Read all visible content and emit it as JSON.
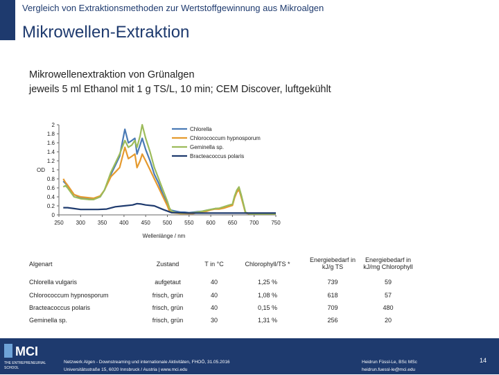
{
  "header": {
    "supertitle": "Vergleich von Extraktionsmethoden zur Wertstoffgewinnung aus Mikroalgen",
    "title": "Mikrowellen-Extraktion"
  },
  "subtitle": {
    "line1": "Mikrowellenextraktion von Grünalgen",
    "line2": "jeweils 5 ml Ethanol mit 1 g TS/L, 10 min; CEM Discover, luftgekühlt"
  },
  "chart_data": {
    "type": "line",
    "ylabel": "OD",
    "xlabel": "Wellenlänge / nm",
    "ylim": [
      0,
      2
    ],
    "xlim": [
      250,
      750
    ],
    "yticks": [
      "0",
      "0.2",
      "0.4",
      "0.6",
      "0.8",
      "1",
      "1.2",
      "1.4",
      "1.6",
      "1.8",
      "2"
    ],
    "xticks": [
      "250",
      "300",
      "350",
      "400",
      "450",
      "500",
      "550",
      "600",
      "650",
      "700",
      "750"
    ],
    "legend_position": "top-right",
    "series": [
      {
        "name": "Chlorella",
        "color": "#4a7ab5",
        "x": [
          260,
          265,
          270,
          285,
          300,
          320,
          330,
          345,
          355,
          370,
          380,
          390,
          402,
          410,
          418,
          425,
          430,
          437,
          442,
          450,
          460,
          470,
          480,
          490,
          500,
          505,
          510,
          520,
          530,
          540,
          550,
          560,
          570,
          580,
          590,
          600,
          610,
          620,
          630,
          640,
          650,
          655,
          660,
          665,
          670,
          680,
          690,
          700,
          710,
          720,
          730,
          740,
          750
        ],
        "y": [
          0.75,
          0.7,
          0.65,
          0.45,
          0.38,
          0.35,
          0.35,
          0.4,
          0.55,
          0.9,
          1.1,
          1.3,
          1.9,
          1.6,
          1.65,
          1.7,
          1.35,
          1.55,
          1.7,
          1.45,
          1.2,
          0.9,
          0.7,
          0.45,
          0.25,
          0.12,
          0.1,
          0.08,
          0.06,
          0.06,
          0.05,
          0.06,
          0.07,
          0.08,
          0.1,
          0.12,
          0.14,
          0.14,
          0.16,
          0.2,
          0.22,
          0.4,
          0.52,
          0.6,
          0.45,
          0.05,
          0.02,
          0.02,
          0.02,
          0.02,
          0.02,
          0.02,
          0.02
        ]
      },
      {
        "name": "Chlorococcum hypnosporum",
        "color": "#e59a2e",
        "x": [
          260,
          265,
          270,
          285,
          300,
          320,
          330,
          345,
          355,
          370,
          380,
          390,
          402,
          410,
          418,
          425,
          430,
          437,
          442,
          450,
          460,
          470,
          480,
          490,
          500,
          505,
          510,
          520,
          530,
          540,
          550,
          560,
          570,
          580,
          590,
          600,
          610,
          620,
          630,
          640,
          650,
          655,
          660,
          665,
          670,
          680,
          690,
          700,
          710,
          720,
          730,
          740,
          750
        ],
        "y": [
          0.8,
          0.72,
          0.66,
          0.45,
          0.4,
          0.38,
          0.37,
          0.42,
          0.55,
          0.85,
          0.95,
          1.05,
          1.5,
          1.25,
          1.3,
          1.35,
          1.05,
          1.2,
          1.35,
          1.2,
          1.0,
          0.8,
          0.6,
          0.4,
          0.2,
          0.08,
          0.05,
          0.04,
          0.03,
          0.03,
          0.03,
          0.03,
          0.05,
          0.07,
          0.08,
          0.11,
          0.13,
          0.13,
          0.15,
          0.18,
          0.21,
          0.38,
          0.5,
          0.56,
          0.4,
          0.04,
          0.02,
          0.02,
          0.02,
          0.02,
          0.02,
          0.02,
          0.02
        ]
      },
      {
        "name": "Geminella sp.",
        "color": "#9cbb5a",
        "x": [
          260,
          265,
          270,
          285,
          300,
          320,
          330,
          345,
          355,
          370,
          380,
          390,
          402,
          410,
          418,
          425,
          430,
          437,
          442,
          450,
          460,
          470,
          480,
          490,
          500,
          505,
          510,
          520,
          530,
          540,
          550,
          560,
          570,
          580,
          590,
          600,
          610,
          620,
          630,
          640,
          650,
          655,
          660,
          665,
          670,
          680,
          690,
          700,
          710,
          720,
          730,
          740,
          750
        ],
        "y": [
          0.62,
          0.65,
          0.6,
          0.4,
          0.36,
          0.34,
          0.34,
          0.4,
          0.55,
          0.95,
          1.15,
          1.35,
          1.65,
          1.5,
          1.55,
          1.65,
          1.5,
          1.75,
          2.0,
          1.7,
          1.4,
          1.05,
          0.8,
          0.55,
          0.3,
          0.15,
          0.08,
          0.05,
          0.04,
          0.04,
          0.04,
          0.05,
          0.06,
          0.08,
          0.1,
          0.12,
          0.14,
          0.15,
          0.18,
          0.21,
          0.24,
          0.42,
          0.55,
          0.62,
          0.45,
          0.06,
          0.02,
          0.02,
          0.02,
          0.02,
          0.02,
          0.02,
          0.02
        ]
      },
      {
        "name": "Bracteacoccus polaris",
        "color": "#1e3a6e",
        "x": [
          260,
          270,
          285,
          300,
          320,
          340,
          360,
          380,
          400,
          420,
          430,
          440,
          450,
          470,
          490,
          510,
          530,
          550,
          570,
          590,
          610,
          630,
          650,
          670,
          690,
          710,
          730,
          750
        ],
        "y": [
          0.16,
          0.16,
          0.14,
          0.12,
          0.12,
          0.12,
          0.13,
          0.18,
          0.2,
          0.22,
          0.25,
          0.24,
          0.22,
          0.2,
          0.12,
          0.05,
          0.05,
          0.04,
          0.04,
          0.04,
          0.04,
          0.04,
          0.04,
          0.04,
          0.04,
          0.04,
          0.04,
          0.04
        ]
      }
    ]
  },
  "table": {
    "headers": [
      {
        "line1": "Algenart",
        "line2": ""
      },
      {
        "line1": "Zustand",
        "line2": ""
      },
      {
        "line1": "T in °C",
        "line2": ""
      },
      {
        "line1": "Chlorophyll/TS *",
        "line2": ""
      },
      {
        "line1": "Energiebedarf in",
        "line2": "kJ/g TS"
      },
      {
        "line1": "Energiebedarf in",
        "line2": "kJ/mg Chlorophyll"
      }
    ],
    "rows": [
      [
        "Chlorella vulgaris",
        "aufgetaut",
        "40",
        "1,25 %",
        "739",
        "59"
      ],
      [
        "Chlorococcum hypnosporum",
        "frisch, grün",
        "40",
        "1,08 %",
        "618",
        "57"
      ],
      [
        "Bracteacoccus polaris",
        "frisch, grün",
        "40",
        "0,15 %",
        "709",
        "480"
      ],
      [
        "Geminella sp.",
        "frisch, grün",
        "30",
        "1,31 %",
        "256",
        "20"
      ]
    ]
  },
  "footer": {
    "logo_text": "MCI",
    "logo_tagline_1": "THE ENTREPRENEURIAL",
    "logo_tagline_2": "SCHOOL",
    "event_line": "Netzwerk Algen - Downstreaming und internationale Aktivitäten, FHOÖ, 31.05.2016",
    "address_line": "Universitätsstraße 15, 6020 Innsbruck / Austria | www.mci.edu",
    "author_line": "Heidrun Füssl-Le, BSc MSc",
    "email_line": "heidrun.fuessl-le@mci.edu",
    "page_number": "14"
  }
}
